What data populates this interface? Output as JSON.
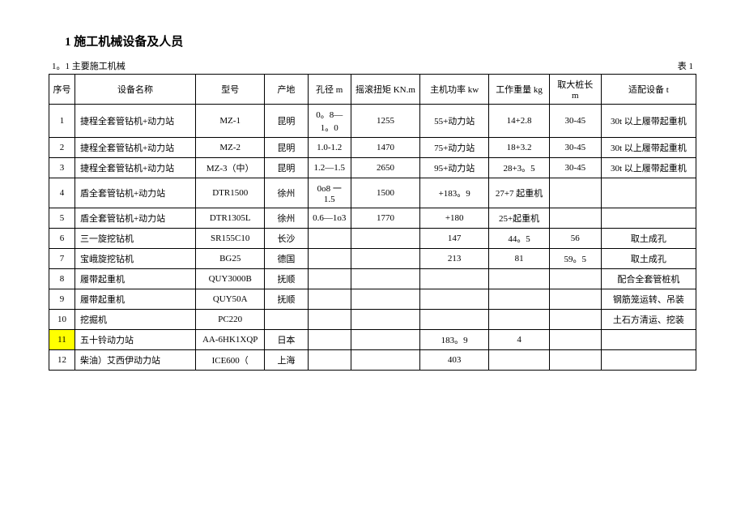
{
  "title": "1 施工机械设备及人员",
  "subtitle_left": "1。1 主要施工机械",
  "subtitle_right": "表 1",
  "columns": {
    "seq": "序号",
    "name": "设备名称",
    "model": "型号",
    "origin": "产地",
    "hole": "孔径 m",
    "torque": "摇滚扭矩 KN.m",
    "power": "主机功率 kw",
    "weight": "工作重量 kg",
    "pile": "取大桩长 m",
    "equip": "适配设备 t"
  },
  "rows": [
    {
      "seq": "1",
      "name": "捷程全套管钻机+动力站",
      "model": "MZ-1",
      "origin": "昆明",
      "hole": "0。8—1。0",
      "torque": "1255",
      "power": "55+动力站",
      "weight": "14+2.8",
      "pile": "30-45",
      "equip": "30t 以上履带起重机"
    },
    {
      "seq": "2",
      "name": "捷程全套管钻机+动力站",
      "model": "MZ-2",
      "origin": "昆明",
      "hole": "1.0-1.2",
      "torque": "1470",
      "power": "75+动力站",
      "weight": "18+3.2",
      "pile": "30-45",
      "equip": "30t 以上履带起重机"
    },
    {
      "seq": "3",
      "name": "捷程全套管钻机+动力站",
      "model": "MZ-3（中）",
      "origin": "昆明",
      "hole": "1.2—1.5",
      "torque": "2650",
      "power": "95+动力站",
      "weight": "28+3。5",
      "pile": "30-45",
      "equip": "30t 以上履带起重机"
    },
    {
      "seq": "4",
      "name": "盾全套管钻机+动力站",
      "model": "DTR1500",
      "origin": "徐州",
      "hole": "0o8 一 1.5",
      "torque": "1500",
      "power": "+183。9",
      "weight": "27+7 起重机",
      "pile": "",
      "equip": ""
    },
    {
      "seq": "5",
      "name": "盾全套管钻机+动力站",
      "model": "DTR1305L",
      "origin": "徐州",
      "hole": "0.6—1o3",
      "torque": "1770",
      "power": "+180",
      "weight": "25+起重机",
      "pile": "",
      "equip": ""
    },
    {
      "seq": "6",
      "name": "三一旋挖钻机",
      "model": "SR155C10",
      "origin": "长沙",
      "hole": "",
      "torque": "",
      "power": "147",
      "weight": "44。5",
      "pile": "56",
      "equip": "取土成孔"
    },
    {
      "seq": "7",
      "name": "宝峨旋挖钻机",
      "model": "BG25",
      "origin": "德国",
      "hole": "",
      "torque": "",
      "power": "213",
      "weight": "81",
      "pile": "59。5",
      "equip": "取土成孔"
    },
    {
      "seq": "8",
      "name": "履带起重机",
      "model": "QUY3000B",
      "origin": "抚顺",
      "hole": "",
      "torque": "",
      "power": "",
      "weight": "",
      "pile": "",
      "equip": "配合全套管桩机"
    },
    {
      "seq": "9",
      "name": "履带起重机",
      "model": "QUY50A",
      "origin": "抚顺",
      "hole": "",
      "torque": "",
      "power": "",
      "weight": "",
      "pile": "",
      "equip": "钢筋笼运转、吊装"
    },
    {
      "seq": "10",
      "name": "挖掘机",
      "model": "PC220",
      "origin": "",
      "hole": "",
      "torque": "",
      "power": "",
      "weight": "",
      "pile": "",
      "equip": "土石方清运、挖装"
    },
    {
      "seq": "11",
      "seq_hl": true,
      "name": "五十铃动力站",
      "model": "AA-6HK1XQP",
      "origin": "日本",
      "hole": "",
      "torque": "",
      "power": "183。9",
      "weight": "4",
      "pile": "",
      "equip": ""
    },
    {
      "seq": "12",
      "name": "柴油）艾西伊动力站",
      "model": "ICE600（",
      "origin": "上海",
      "hole": "",
      "torque": "",
      "power": "403",
      "weight": "",
      "pile": "",
      "equip": ""
    }
  ]
}
